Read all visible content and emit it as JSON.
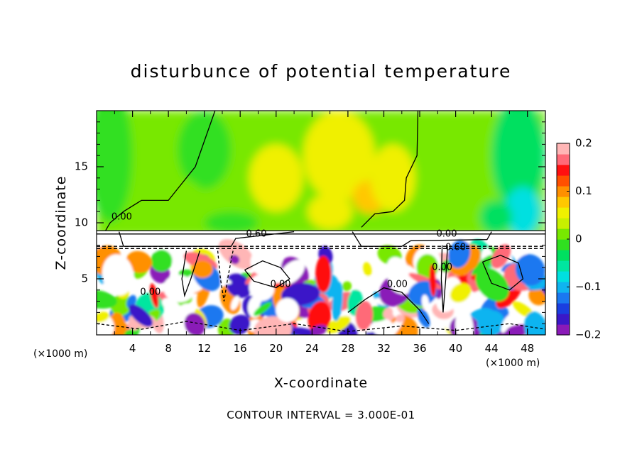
{
  "chart_data": {
    "type": "heatmap",
    "title": "disturbunce of potential temperature",
    "xlabel": "X-coordinate",
    "ylabel": "Z-coordinate",
    "x_unit_left": "(×1000 m)",
    "x_unit_right": "(×1000 m)",
    "footer": "CONTOUR INTERVAL = 3.000E-01",
    "xlim": [
      0,
      50
    ],
    "ylim": [
      0,
      20
    ],
    "x_ticks": [
      4,
      8,
      12,
      16,
      20,
      24,
      28,
      32,
      36,
      40,
      44,
      48
    ],
    "y_ticks": [
      5,
      10,
      15
    ],
    "colorbar": {
      "range": [
        -0.2,
        0.2
      ],
      "tick_values": [
        0.2,
        0.1,
        0,
        -0.1,
        -0.2
      ],
      "tick_labels": [
        "0.2",
        "0.1",
        "0",
        "−0.1",
        "−0.2"
      ],
      "colors": [
        "#8a1ab8",
        "#3a18c8",
        "#1a3ee0",
        "#1a78f0",
        "#10b4f0",
        "#00e0e0",
        "#00e6a0",
        "#00e060",
        "#30e020",
        "#78e800",
        "#c8f000",
        "#f0f000",
        "#ffc800",
        "#ff9000",
        "#ff5000",
        "#ff1010",
        "#ff6a78",
        "#ffb6b6"
      ]
    },
    "contour_labels": [
      {
        "text": "0.00",
        "x": 2.8,
        "y": 10.5
      },
      {
        "text": "0.60",
        "x": 17.8,
        "y": 9.0
      },
      {
        "text": "0.00",
        "x": 39.0,
        "y": 9.0
      },
      {
        "text": "0.60",
        "x": 40.0,
        "y": 7.8
      },
      {
        "text": "0.00",
        "x": 6.0,
        "y": 3.8
      },
      {
        "text": "0.00",
        "x": 20.5,
        "y": 4.5
      },
      {
        "text": "0.00",
        "x": 33.5,
        "y": 4.5
      },
      {
        "text": "0.00",
        "x": 38.5,
        "y": 6.0
      }
    ],
    "grid": false
  }
}
